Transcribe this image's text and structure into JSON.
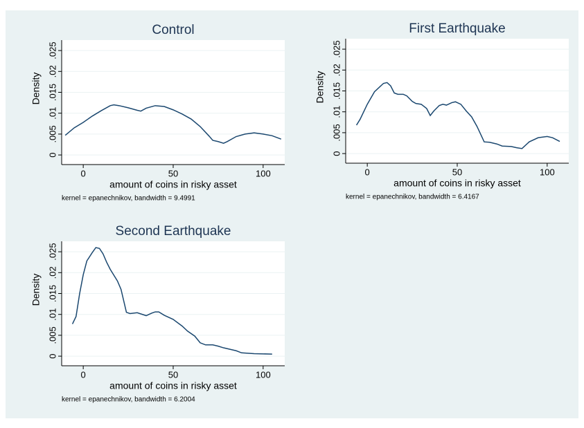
{
  "chart_data": [
    {
      "type": "line",
      "title": "Control",
      "xlabel": "amount of coins in risky asset",
      "ylabel": "Density",
      "note": "kernel = epanechnikov, bandwidth = 9.4991",
      "color": "#1a476f",
      "grid": true,
      "x": [
        -10,
        -5,
        0,
        5,
        10,
        15,
        17,
        20,
        25,
        30,
        32,
        35,
        40,
        45,
        50,
        55,
        60,
        65,
        70,
        72,
        75,
        78,
        80,
        85,
        90,
        95,
        100,
        105,
        110
      ],
      "values": [
        0.0047,
        0.0065,
        0.0078,
        0.0093,
        0.0106,
        0.0118,
        0.012,
        0.0118,
        0.0113,
        0.0107,
        0.0105,
        0.0112,
        0.0118,
        0.0116,
        0.0108,
        0.0098,
        0.0086,
        0.0068,
        0.0045,
        0.0035,
        0.0032,
        0.0028,
        0.0032,
        0.0044,
        0.005,
        0.0053,
        0.005,
        0.0046,
        0.0038
      ],
      "xlim": [
        -12,
        112
      ],
      "xticks": [
        0,
        50,
        100
      ],
      "ylim": [
        -0.0023,
        0.0275
      ],
      "yticks": [
        0,
        {
          "value": 0.005,
          "label": ".005"
        },
        {
          "value": 0.01,
          "label": ".01"
        },
        {
          "value": 0.015,
          "label": ".015"
        },
        {
          "value": 0.02,
          "label": ".02"
        },
        {
          "value": 0.025,
          "label": ".025"
        }
      ]
    },
    {
      "type": "line",
      "title": "First Earthquake",
      "xlabel": "amount of coins in risky asset",
      "ylabel": "Density",
      "note": "kernel = epanechnikov, bandwidth = 6.4167",
      "color": "#1a476f",
      "grid": true,
      "x": [
        -6,
        -4,
        0,
        4,
        7,
        9,
        11,
        13,
        15,
        17,
        20,
        22,
        25,
        27,
        30,
        33,
        35,
        37,
        40,
        42,
        44,
        47,
        49,
        52,
        55,
        58,
        61,
        65,
        68,
        72,
        75,
        80,
        83,
        86,
        90,
        95,
        100,
        103,
        107
      ],
      "values": [
        0.0068,
        0.0082,
        0.0118,
        0.0148,
        0.016,
        0.0168,
        0.017,
        0.0162,
        0.0145,
        0.0142,
        0.0142,
        0.0138,
        0.0125,
        0.012,
        0.0118,
        0.0108,
        0.0091,
        0.0102,
        0.0115,
        0.0118,
        0.0116,
        0.0122,
        0.0124,
        0.0118,
        0.0102,
        0.0088,
        0.0065,
        0.0028,
        0.0027,
        0.0023,
        0.0018,
        0.0017,
        0.0014,
        0.0012,
        0.0028,
        0.0038,
        0.0041,
        0.0038,
        0.0029
      ],
      "xlim": [
        -12,
        112
      ],
      "xticks": [
        0,
        50,
        100
      ],
      "ylim": [
        -0.0023,
        0.0275
      ],
      "yticks": [
        0,
        {
          "value": 0.005,
          "label": ".005"
        },
        {
          "value": 0.01,
          "label": ".01"
        },
        {
          "value": 0.015,
          "label": ".015"
        },
        {
          "value": 0.02,
          "label": ".02"
        },
        {
          "value": 0.025,
          "label": ".025"
        }
      ]
    },
    {
      "type": "line",
      "title": "Second Earthquake",
      "xlabel": "amount of coins in risky asset",
      "ylabel": "Density",
      "note": "kernel = epanechnikov, bandwidth = 6.2004",
      "color": "#1a476f",
      "grid": true,
      "x": [
        -6,
        -4,
        -2,
        0,
        2,
        5,
        7,
        9,
        11,
        13,
        15,
        19,
        21,
        24,
        26,
        30,
        35,
        38,
        40,
        42,
        45,
        50,
        55,
        58,
        62,
        65,
        68,
        72,
        75,
        78,
        85,
        88,
        95,
        105
      ],
      "values": [
        0.0077,
        0.0095,
        0.015,
        0.0195,
        0.0228,
        0.0248,
        0.026,
        0.0258,
        0.0245,
        0.0225,
        0.0208,
        0.018,
        0.016,
        0.0105,
        0.0102,
        0.0104,
        0.0097,
        0.0103,
        0.0106,
        0.0106,
        0.0098,
        0.0088,
        0.0072,
        0.006,
        0.0048,
        0.0032,
        0.0027,
        0.0027,
        0.0024,
        0.002,
        0.0013,
        0.0008,
        0.0006,
        0.0005
      ],
      "xlim": [
        -12,
        112
      ],
      "xticks": [
        0,
        50,
        100
      ],
      "ylim": [
        -0.0023,
        0.0275
      ],
      "yticks": [
        0,
        {
          "value": 0.005,
          "label": ".005"
        },
        {
          "value": 0.01,
          "label": ".01"
        },
        {
          "value": 0.015,
          "label": ".015"
        },
        {
          "value": 0.02,
          "label": ".02"
        },
        {
          "value": 0.025,
          "label": ".025"
        }
      ]
    }
  ]
}
